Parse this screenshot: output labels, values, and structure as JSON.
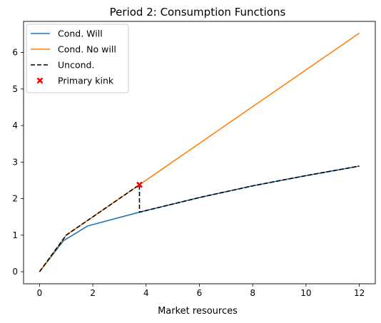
{
  "chart_data": {
    "type": "line",
    "title": "Period 2: Consumption Functions",
    "xlabel": "Market resources",
    "ylabel": "",
    "xlim": [
      -0.6,
      12.6
    ],
    "ylim": [
      -0.33,
      6.85
    ],
    "xticks": [
      0,
      2,
      4,
      6,
      8,
      10,
      12
    ],
    "yticks": [
      0,
      1,
      2,
      3,
      4,
      5,
      6
    ],
    "grid": false,
    "legend_position": "top-left",
    "series": [
      {
        "name": "Cond. Will",
        "color": "#1f77b4",
        "style": "solid",
        "x": [
          0,
          0.9,
          1.8,
          3.75,
          6,
          8,
          10,
          12
        ],
        "y": [
          0,
          0.85,
          1.25,
          1.63,
          2.03,
          2.35,
          2.63,
          2.89
        ]
      },
      {
        "name": "Cond. No will",
        "color": "#ff7f0e",
        "style": "solid",
        "x": [
          0,
          1.0,
          3.75,
          12
        ],
        "y": [
          0,
          1.0,
          2.38,
          6.53
        ]
      },
      {
        "name": "Uncond.",
        "color": "#000000",
        "style": "dashed",
        "x": [
          0,
          1.0,
          3.75,
          3.75,
          6,
          8,
          10,
          12
        ],
        "y": [
          0,
          1.0,
          2.38,
          1.63,
          2.03,
          2.35,
          2.63,
          2.89
        ]
      },
      {
        "name": "Primary kink",
        "color": "#ff0000",
        "style": "marker-x",
        "x": [
          3.75
        ],
        "y": [
          2.38
        ]
      }
    ]
  }
}
